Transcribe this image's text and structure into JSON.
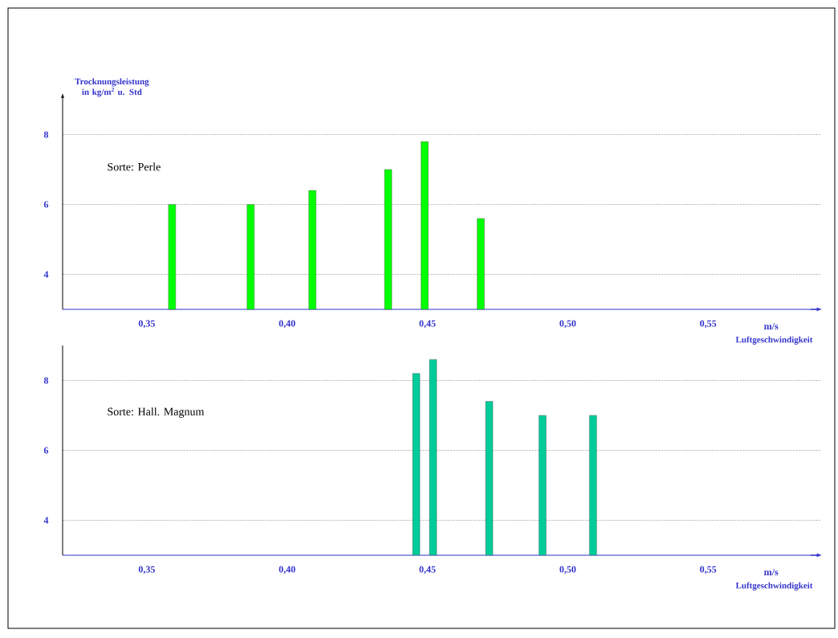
{
  "chart_data": [
    {
      "type": "bar",
      "title": "Sorte: Perle",
      "ylabel": "Trocknungsleistung in kg/m$^{2}$ u. Std",
      "xlabel": "Luftgeschwindigkeit",
      "annotations": [
        "m/s"
      ],
      "x": [
        0.359,
        0.387,
        0.409,
        0.436,
        0.449,
        0.469
      ],
      "values": [
        6,
        6,
        6.4,
        7,
        7.8,
        5.6
      ],
      "color": "#00ff00",
      "xlim": [
        0.32,
        0.59
      ],
      "ylim": [
        3,
        9
      ],
      "xticks": [
        {
          "value": 0.35,
          "label": "0,35"
        },
        {
          "value": 0.4,
          "label": "0,40"
        },
        {
          "value": 0.45,
          "label": "0,45"
        },
        {
          "value": 0.5,
          "label": "0,50"
        },
        {
          "value": 0.55,
          "label": "0,55"
        }
      ],
      "yticks": [
        4,
        6,
        8
      ],
      "grid": "y"
    },
    {
      "type": "bar",
      "title": "Sorte: Hall. Magnum",
      "xlabel": "Luftgeschwindigkeit",
      "annotations": [
        "m/s"
      ],
      "x": [
        0.446,
        0.452,
        0.472,
        0.491,
        0.509
      ],
      "values": [
        8.2,
        8.6,
        7.4,
        7,
        7
      ],
      "color": "#00cc99",
      "xlim": [
        0.32,
        0.59
      ],
      "ylim": [
        3,
        9
      ],
      "xticks": [
        {
          "value": 0.35,
          "label": "0,35"
        },
        {
          "value": 0.4,
          "label": "0,40"
        },
        {
          "value": 0.45,
          "label": "0,45"
        },
        {
          "value": 0.5,
          "label": "0,50"
        },
        {
          "value": 0.55,
          "label": "0,55"
        }
      ],
      "yticks": [
        4,
        6,
        8
      ],
      "grid": "y"
    }
  ]
}
